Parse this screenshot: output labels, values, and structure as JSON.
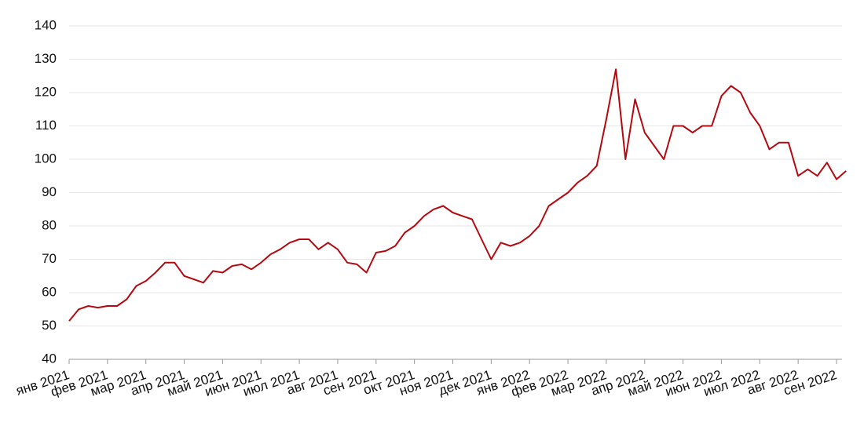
{
  "chart_data": {
    "type": "line",
    "categories": [
      "янв 2021",
      null,
      null,
      null,
      "фев 2021",
      null,
      null,
      null,
      "мар 2021",
      null,
      null,
      null,
      "апр 2021",
      null,
      null,
      null,
      "май 2021",
      null,
      null,
      null,
      "июн 2021",
      null,
      null,
      null,
      "июл 2021",
      null,
      null,
      null,
      "авг 2021",
      null,
      null,
      null,
      "сен 2021",
      null,
      null,
      null,
      "окт 2021",
      null,
      null,
      null,
      "ноя 2021",
      null,
      null,
      null,
      "дек 2021",
      null,
      null,
      null,
      "янв 2022",
      null,
      null,
      null,
      "фев 2022",
      null,
      null,
      null,
      "мар 2022",
      null,
      null,
      null,
      "апр 2022",
      null,
      null,
      null,
      "май 2022",
      null,
      null,
      null,
      "июн 2022",
      null,
      null,
      null,
      "июл 2022",
      null,
      null,
      null,
      "авг 2022",
      null,
      null,
      null,
      "сен 2022",
      null
    ],
    "series": [
      {
        "color": "#b5080f",
        "values": [
          51.5,
          55,
          56,
          55.5,
          56,
          56,
          58,
          62,
          63.5,
          66,
          69,
          69,
          65,
          64,
          63,
          66.5,
          66,
          68,
          68.5,
          67,
          69,
          71.5,
          73,
          75,
          76,
          76,
          73,
          75,
          73,
          69,
          68.5,
          66,
          72,
          72.5,
          74,
          78,
          80,
          83,
          85,
          86,
          84,
          83,
          82,
          76,
          70,
          75,
          74,
          75,
          77,
          80,
          86,
          88,
          90,
          93,
          95,
          98,
          112,
          127,
          100,
          118,
          108,
          104,
          100,
          110,
          110,
          108,
          110,
          110,
          119,
          122,
          120,
          114,
          110,
          103,
          105,
          105,
          95,
          97,
          95,
          99,
          94,
          96.5
        ]
      }
    ],
    "ylim": [
      40,
      140
    ],
    "yticks": [
      40,
      50,
      60,
      70,
      80,
      90,
      100,
      110,
      120,
      130,
      140
    ],
    "grid": true
  }
}
